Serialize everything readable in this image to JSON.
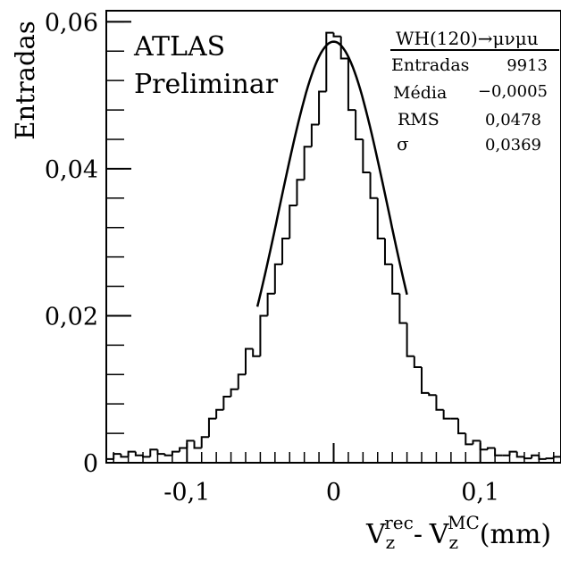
{
  "chart_data": {
    "type": "histogram",
    "ylabel": "Entradas",
    "xlabel": {
      "base1": "V",
      "sub1": "z",
      "sup1": "rec",
      "sep": "-",
      "base2": "V",
      "sub2": "z",
      "sup2": "MC",
      "unit": "(mm)"
    },
    "xlim": [
      -0.155,
      0.155
    ],
    "ylim": [
      0,
      0.0615
    ],
    "grid": false,
    "xticks": [
      {
        "value": -0.1,
        "label": "-0,1"
      },
      {
        "value": 0,
        "label": "0"
      },
      {
        "value": 0.1,
        "label": "0,1"
      }
    ],
    "yticks": [
      {
        "value": 0,
        "label": "0"
      },
      {
        "value": 0.02,
        "label": "0,02"
      },
      {
        "value": 0.04,
        "label": "0,04"
      },
      {
        "value": 0.06,
        "label": "0,06"
      }
    ],
    "annotation": [
      "ATLAS",
      "Preliminar"
    ],
    "stats_box": {
      "title": "WH(120)→μνμu",
      "rows": [
        {
          "name": "Entradas",
          "value": "9913"
        },
        {
          "name": "Média",
          "value": "−0,0005"
        },
        {
          "name": "RMS",
          "value": "0,0478"
        },
        {
          "name": "σ",
          "value": "0,0369"
        }
      ]
    },
    "bin_width": 0.005,
    "bins_start": -0.155,
    "values": [
      0.0005,
      0.0012,
      0.0008,
      0.0015,
      0.001,
      0.0008,
      0.0018,
      0.0012,
      0.001,
      0.0015,
      0.002,
      0.003,
      0.002,
      0.0035,
      0.006,
      0.0072,
      0.009,
      0.01,
      0.012,
      0.0155,
      0.0145,
      0.02,
      0.023,
      0.027,
      0.0305,
      0.035,
      0.0385,
      0.043,
      0.046,
      0.0505,
      0.0585,
      0.058,
      0.055,
      0.048,
      0.044,
      0.0395,
      0.036,
      0.0305,
      0.027,
      0.023,
      0.019,
      0.0145,
      0.013,
      0.0095,
      0.0092,
      0.0072,
      0.006,
      0.006,
      0.004,
      0.0025,
      0.003,
      0.0018,
      0.002,
      0.001,
      0.001,
      0.0015,
      0.0008,
      0.0006,
      0.001,
      0.0005,
      0.0006,
      0.0008
    ],
    "fit": {
      "type": "gaussian",
      "amplitude": 0.0573,
      "mean": 0.0,
      "sigma": 0.0369,
      "range": [
        -0.052,
        0.05
      ]
    },
    "colors": {
      "line": "#000000",
      "background": "#ffffff"
    }
  }
}
